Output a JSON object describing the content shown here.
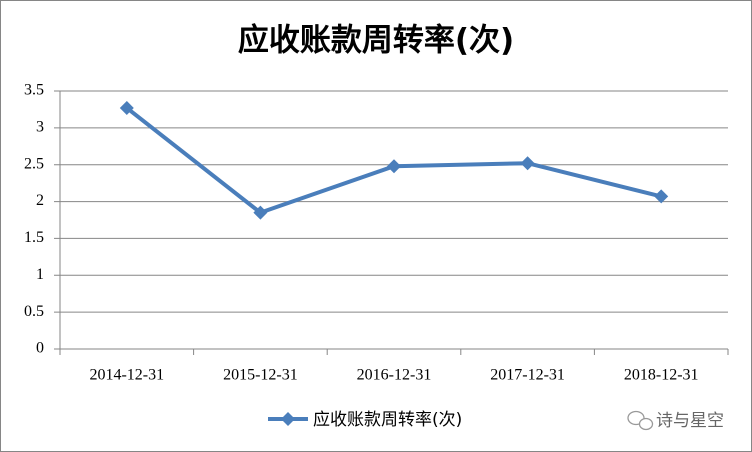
{
  "chart_data": {
    "type": "line",
    "title": "应收账款周转率(次)",
    "categories": [
      "2014-12-31",
      "2015-12-31",
      "2016-12-31",
      "2017-12-31",
      "2018-12-31"
    ],
    "series": [
      {
        "name": "应收账款周转率(次)",
        "color": "#4a7ebb",
        "values": [
          3.27,
          1.85,
          2.48,
          2.52,
          2.07
        ]
      }
    ],
    "ylim": [
      0,
      3.5
    ],
    "yticks": [
      0,
      0.5,
      1,
      1.5,
      2,
      2.5,
      3,
      3.5
    ],
    "grid": true,
    "legend": "bottom",
    "watermark": "诗与星空"
  }
}
